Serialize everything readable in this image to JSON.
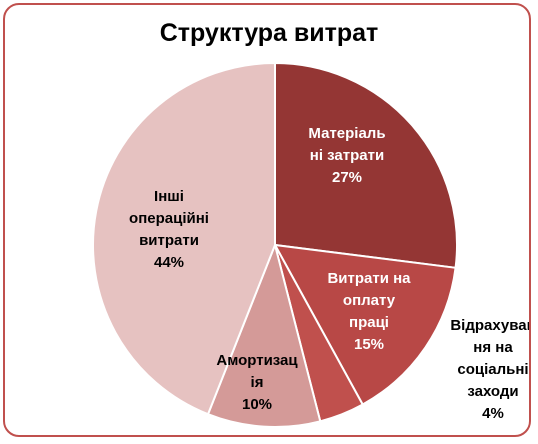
{
  "chart_data": {
    "type": "pie",
    "title": "Структура витрат",
    "slices": [
      {
        "label_lines": [
          "Матеріаль",
          "ні затрати"
        ],
        "pct_label": "27%",
        "value": 27,
        "color": "#943634"
      },
      {
        "label_lines": [
          "Витрати на",
          "оплату",
          "праці"
        ],
        "pct_label": "15%",
        "value": 15,
        "color": "#b84846"
      },
      {
        "label_lines": [
          "Відрахуван",
          "ня на",
          "соціальні",
          "заходи"
        ],
        "pct_label": "4%",
        "value": 4,
        "color": "#c0504d"
      },
      {
        "label_lines": [
          "Амортизац",
          "ія"
        ],
        "pct_label": "10%",
        "value": 10,
        "color": "#d49a98"
      },
      {
        "label_lines": [
          "Інші",
          "операційні",
          "витрати"
        ],
        "pct_label": "44%",
        "value": 44,
        "color": "#e6c2c1"
      }
    ],
    "legend": "none"
  },
  "colors": {
    "frame_border": "#c0504d",
    "label_on_dark": "#ffffff",
    "label_on_light": "#000000"
  }
}
